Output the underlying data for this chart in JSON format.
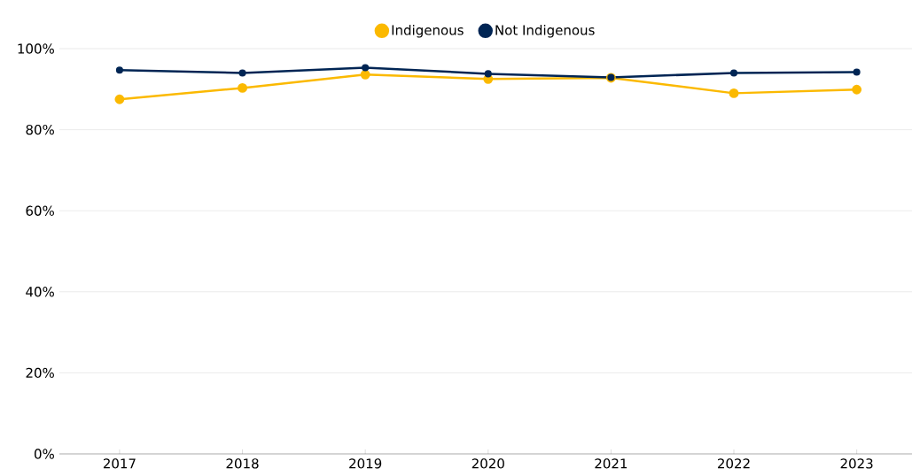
{
  "chart_data": {
    "type": "line",
    "categories": [
      "2017",
      "2018",
      "2019",
      "2020",
      "2021",
      "2022",
      "2023"
    ],
    "series": [
      {
        "name": "Indigenous",
        "color": "#fbb900",
        "values": [
          87.5,
          90.3,
          93.6,
          92.5,
          92.8,
          89.0,
          89.9
        ]
      },
      {
        "name": "Not Indigenous",
        "color": "#002554",
        "values": [
          94.7,
          94.0,
          95.3,
          93.8,
          92.9,
          94.0,
          94.2
        ]
      }
    ],
    "ylim": [
      0,
      100
    ],
    "yticks": [
      {
        "value": 0,
        "label": "0%"
      },
      {
        "value": 20,
        "label": "20%"
      },
      {
        "value": 40,
        "label": "40%"
      },
      {
        "value": 60,
        "label": "60%"
      },
      {
        "value": 80,
        "label": "80%"
      },
      {
        "value": 100,
        "label": "100%"
      }
    ],
    "grid": "y",
    "legend": "top",
    "marker": "circle",
    "line_style": "solid"
  }
}
